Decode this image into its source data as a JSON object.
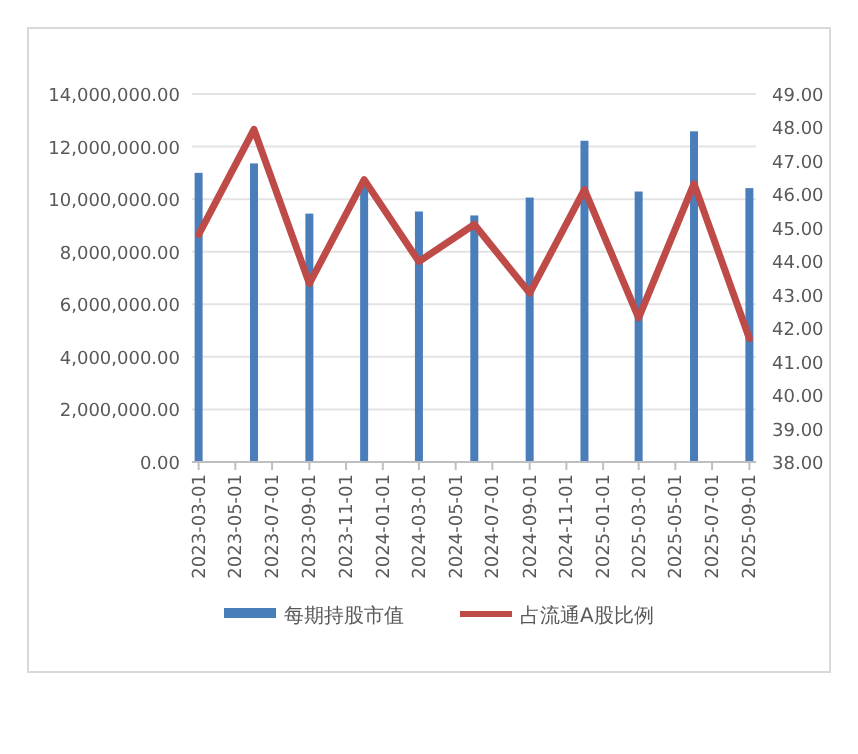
{
  "chart_data": {
    "type": "bar",
    "x": [
      "2023-03-01",
      "2023-06-01",
      "2023-09-01",
      "2023-12-01",
      "2024-03-01",
      "2024-06-01",
      "2024-09-01",
      "2024-12-01",
      "2025-03-01",
      "2025-06-01",
      "2025-09-01"
    ],
    "series": [
      {
        "name": "每期持股市值",
        "color": "#4a7ebb",
        "values": [
          11000000,
          11360000,
          9450000,
          10500000,
          9530000,
          9380000,
          10060000,
          12220000,
          10290000,
          12580000,
          10420000
        ]
      },
      {
        "name": "占流通A股比例",
        "type": "line",
        "axis": "y2",
        "color": "#be4b48",
        "values": [
          44.8,
          47.94,
          43.33,
          46.44,
          43.99,
          45.1,
          43.05,
          46.14,
          42.31,
          46.32,
          41.69
        ]
      }
    ],
    "xlim": [
      "2023-03-01",
      "2025-09-01"
    ],
    "xticks": [
      {
        "value": "2023-03-01",
        "label": "2023-03-01"
      },
      {
        "value": "2023-05-01",
        "label": "2023-05-01"
      },
      {
        "value": "2023-07-01",
        "label": "2023-07-01"
      },
      {
        "value": "2023-09-01",
        "label": "2023-09-01"
      },
      {
        "value": "2023-11-01",
        "label": "2023-11-01"
      },
      {
        "value": "2024-01-01",
        "label": "2024-01-01"
      },
      {
        "value": "2024-03-01",
        "label": "2024-03-01"
      },
      {
        "value": "2024-05-01",
        "label": "2024-05-01"
      },
      {
        "value": "2024-07-01",
        "label": "2024-07-01"
      },
      {
        "value": "2024-09-01",
        "label": "2024-09-01"
      },
      {
        "value": "2024-11-01",
        "label": "2024-11-01"
      },
      {
        "value": "2025-01-01",
        "label": "2025-01-01"
      },
      {
        "value": "2025-03-01",
        "label": "2025-03-01"
      },
      {
        "value": "2025-05-01",
        "label": "2025-05-01"
      },
      {
        "value": "2025-07-01",
        "label": "2025-07-01"
      },
      {
        "value": "2025-09-01",
        "label": "2025-09-01"
      }
    ],
    "ylim": [
      0,
      14000000
    ],
    "yticks": [
      {
        "value": 0,
        "label": "0.00"
      },
      {
        "value": 2000000,
        "label": "2,000,000.00"
      },
      {
        "value": 4000000,
        "label": "4,000,000.00"
      },
      {
        "value": 6000000,
        "label": "6,000,000.00"
      },
      {
        "value": 8000000,
        "label": "8,000,000.00"
      },
      {
        "value": 10000000,
        "label": "10,000,000.00"
      },
      {
        "value": 12000000,
        "label": "12,000,000.00"
      },
      {
        "value": 14000000,
        "label": "14,000,000.00"
      }
    ],
    "y2lim": [
      38,
      49
    ],
    "y2ticks": [
      {
        "value": 38,
        "label": "38.00"
      },
      {
        "value": 39,
        "label": "39.00"
      },
      {
        "value": 40,
        "label": "40.00"
      },
      {
        "value": 41,
        "label": "41.00"
      },
      {
        "value": 42,
        "label": "42.00"
      },
      {
        "value": 43,
        "label": "43.00"
      },
      {
        "value": 44,
        "label": "44.00"
      },
      {
        "value": 45,
        "label": "45.00"
      },
      {
        "value": 46,
        "label": "46.00"
      },
      {
        "value": 47,
        "label": "47.00"
      },
      {
        "value": 48,
        "label": "48.00"
      },
      {
        "value": 49,
        "label": "49.00"
      }
    ],
    "grid": "y",
    "legend": "bottom",
    "marker": "none",
    "line_style": "solid"
  }
}
